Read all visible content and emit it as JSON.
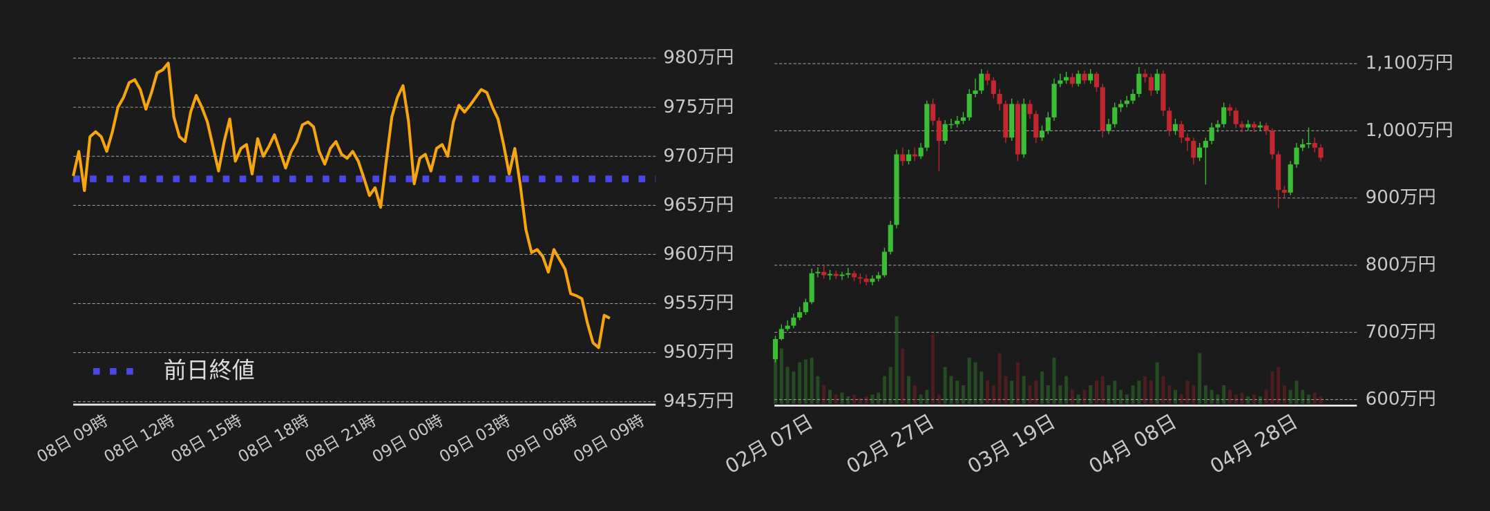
{
  "chart_data": [
    {
      "type": "line",
      "categories": [
        null,
        null,
        null,
        null,
        null,
        null,
        "08日 09時",
        null,
        null,
        null,
        null,
        null,
        null,
        null,
        null,
        null,
        null,
        null,
        "08日 12時",
        null,
        null,
        null,
        null,
        null,
        null,
        null,
        null,
        null,
        null,
        null,
        "08日 15時",
        null,
        null,
        null,
        null,
        null,
        null,
        null,
        null,
        null,
        null,
        null,
        "08日 18時",
        null,
        null,
        null,
        null,
        null,
        null,
        null,
        null,
        null,
        null,
        null,
        "08日 21時",
        null,
        null,
        null,
        null,
        null,
        null,
        null,
        null,
        null,
        null,
        null,
        "09日 00時",
        null,
        null,
        null,
        null,
        null,
        null,
        null,
        null,
        null,
        null,
        null,
        "09日 03時",
        null,
        null,
        null,
        null,
        null,
        null,
        null,
        null,
        null,
        null,
        null,
        "09日 06時",
        null,
        null,
        null,
        null,
        null,
        null,
        null,
        null,
        null,
        null,
        null,
        "09日 09時"
      ],
      "series": [
        {
          "color": "#f5a50d",
          "values": [
            968.0,
            970.5,
            966.5,
            972.0,
            972.5,
            972.0,
            970.5,
            972.5,
            975.0,
            976.0,
            977.5,
            977.8,
            976.8,
            974.8,
            976.5,
            978.5,
            978.8,
            979.5,
            974.0,
            972.0,
            971.5,
            974.5,
            976.2,
            975.0,
            973.5,
            971.0,
            968.5,
            971.5,
            973.8,
            969.5,
            970.8,
            971.2,
            968.2,
            971.8,
            970.0,
            971.0,
            972.2,
            970.5,
            968.8,
            970.5,
            971.5,
            973.2,
            973.5,
            973.0,
            970.5,
            969.2,
            970.8,
            971.5,
            970.2,
            969.8,
            970.5,
            969.5,
            967.8,
            966.0,
            966.8,
            964.8,
            969.5,
            974.0,
            976.0,
            977.2,
            973.5,
            967.2,
            969.8,
            970.2,
            968.5,
            970.8,
            971.2,
            970.0,
            973.5,
            975.2,
            974.5,
            975.2,
            976.0,
            976.8,
            976.5,
            975.0,
            973.8,
            971.2,
            968.2,
            970.8,
            967.0,
            962.5,
            960.2,
            960.5,
            959.8,
            958.2,
            960.5,
            959.5,
            958.5,
            956.0,
            955.8,
            955.5,
            953.0,
            951.0,
            950.5,
            953.8,
            953.5,
            null,
            null,
            null,
            null,
            null,
            null
          ]
        }
      ],
      "reference": {
        "name": "前日終値",
        "value": 967.7,
        "color": "#4b46e6"
      },
      "ylim": [
        944.7,
        980.6
      ],
      "yticks": [
        {
          "value": 945,
          "label": "945万円"
        },
        {
          "value": 950,
          "label": "950万円"
        },
        {
          "value": 955,
          "label": "955万円"
        },
        {
          "value": 960,
          "label": "960万円"
        },
        {
          "value": 965,
          "label": "965万円"
        },
        {
          "value": 970,
          "label": "970万円"
        },
        {
          "value": 975,
          "label": "975万円"
        },
        {
          "value": 980,
          "label": "980万円"
        }
      ],
      "grid": true,
      "legend": "lower left"
    },
    {
      "type": "candlestick",
      "categories": [
        null,
        null,
        null,
        null,
        null,
        null,
        "02月 07日",
        null,
        null,
        null,
        null,
        null,
        null,
        null,
        null,
        null,
        null,
        null,
        null,
        null,
        null,
        null,
        null,
        null,
        null,
        null,
        "02月 27日",
        null,
        null,
        null,
        null,
        null,
        null,
        null,
        null,
        null,
        null,
        null,
        null,
        null,
        null,
        null,
        null,
        null,
        null,
        null,
        "03月 19日",
        null,
        null,
        null,
        null,
        null,
        null,
        null,
        null,
        null,
        null,
        null,
        null,
        null,
        null,
        null,
        null,
        null,
        null,
        null,
        "04月 08日",
        null,
        null,
        null,
        null,
        null,
        null,
        null,
        null,
        null,
        null,
        null,
        null,
        null,
        null,
        null,
        null,
        null,
        null,
        null,
        "04月 28日",
        null,
        null,
        null,
        null
      ],
      "open": [
        660,
        690,
        705,
        710,
        722,
        730,
        745,
        788,
        790,
        785,
        787,
        784,
        786,
        788,
        782,
        780,
        775,
        780,
        785,
        820,
        860,
        965,
        955,
        965,
        962,
        975,
        1040,
        1015,
        985,
        1010,
        1010,
        1015,
        1020,
        1055,
        1060,
        1085,
        1075,
        1055,
        1040,
        990,
        1040,
        965,
        1040,
        1025,
        990,
        1000,
        1020,
        1070,
        1075,
        1080,
        1070,
        1085,
        1075,
        1085,
        1065,
        1000,
        1010,
        1035,
        1040,
        1045,
        1055,
        1085,
        1080,
        1060,
        1085,
        1030,
        1000,
        1010,
        990,
        985,
        960,
        975,
        985,
        1005,
        1010,
        1035,
        1030,
        1010,
        1005,
        1010,
        1005,
        1008,
        1000,
        965,
        912,
        908,
        950,
        975,
        980,
        982,
        975
      ],
      "high": [
        695,
        712,
        718,
        728,
        738,
        750,
        795,
        797,
        800,
        793,
        792,
        790,
        796,
        792,
        788,
        786,
        785,
        790,
        826,
        866,
        972,
        975,
        972,
        975,
        982,
        1045,
        1048,
        1020,
        1016,
        1018,
        1022,
        1028,
        1062,
        1078,
        1092,
        1090,
        1080,
        1062,
        1045,
        1048,
        1045,
        1048,
        1046,
        1030,
        1008,
        1028,
        1078,
        1085,
        1088,
        1086,
        1090,
        1090,
        1092,
        1088,
        1070,
        1018,
        1042,
        1046,
        1052,
        1062,
        1095,
        1092,
        1085,
        1092,
        1090,
        1035,
        1018,
        1015,
        996,
        990,
        982,
        990,
        1012,
        1016,
        1042,
        1040,
        1034,
        1015,
        1016,
        1014,
        1014,
        1012,
        1004,
        970,
        918,
        955,
        982,
        988,
        1005,
        990,
        980
      ],
      "low": [
        655,
        688,
        702,
        706,
        718,
        726,
        742,
        782,
        780,
        778,
        779,
        778,
        781,
        776,
        772,
        770,
        770,
        776,
        782,
        816,
        855,
        948,
        950,
        955,
        958,
        970,
        1008,
        940,
        980,
        1003,
        1005,
        1010,
        1015,
        1050,
        1055,
        1068,
        1048,
        1030,
        982,
        985,
        955,
        960,
        1018,
        982,
        985,
        995,
        1015,
        1065,
        1070,
        1065,
        1066,
        1070,
        1070,
        1058,
        990,
        995,
        1005,
        1028,
        1035,
        1040,
        1050,
        1072,
        1052,
        1055,
        1022,
        992,
        994,
        982,
        970,
        950,
        955,
        920,
        980,
        998,
        1005,
        1022,
        1004,
        998,
        1000,
        998,
        1000,
        994,
        958,
        885,
        900,
        904,
        945,
        970,
        974,
        968,
        955
      ],
      "close": [
        690,
        705,
        710,
        722,
        730,
        745,
        788,
        790,
        785,
        787,
        784,
        786,
        788,
        782,
        780,
        775,
        780,
        785,
        820,
        860,
        965,
        955,
        965,
        962,
        975,
        1040,
        1015,
        985,
        1010,
        1010,
        1015,
        1020,
        1055,
        1060,
        1085,
        1075,
        1055,
        1040,
        990,
        1040,
        965,
        1040,
        1025,
        990,
        1000,
        1020,
        1070,
        1075,
        1080,
        1070,
        1085,
        1075,
        1085,
        1065,
        1000,
        1010,
        1035,
        1040,
        1045,
        1055,
        1085,
        1080,
        1060,
        1085,
        1030,
        1000,
        1010,
        990,
        985,
        960,
        975,
        985,
        1005,
        1010,
        1035,
        1030,
        1010,
        1005,
        1010,
        1005,
        1008,
        1000,
        965,
        912,
        908,
        950,
        975,
        980,
        982,
        975,
        960
      ],
      "volume": [
        55,
        60,
        40,
        35,
        45,
        48,
        50,
        30,
        20,
        15,
        10,
        12,
        8,
        10,
        6,
        8,
        10,
        12,
        30,
        40,
        95,
        60,
        30,
        20,
        10,
        15,
        75,
        10,
        40,
        30,
        25,
        20,
        50,
        45,
        35,
        25,
        20,
        55,
        30,
        25,
        45,
        30,
        20,
        25,
        35,
        20,
        50,
        20,
        30,
        15,
        10,
        15,
        20,
        25,
        30,
        20,
        25,
        15,
        10,
        20,
        25,
        30,
        25,
        45,
        30,
        20,
        15,
        10,
        25,
        20,
        55,
        20,
        15,
        10,
        20,
        15,
        10,
        12,
        8,
        10,
        8,
        15,
        35,
        40,
        20,
        15,
        25,
        15,
        10,
        12,
        8
      ],
      "up_color": "#3cbd36",
      "down_color": "#c2262e",
      "ylim": [
        591,
        1117
      ],
      "yticks": [
        {
          "value": 600,
          "label": "600万円"
        },
        {
          "value": 700,
          "label": "700万円"
        },
        {
          "value": 800,
          "label": "800万円"
        },
        {
          "value": 900,
          "label": "900万円"
        },
        {
          "value": 1000,
          "label": "1,000万円"
        },
        {
          "value": 1100,
          "label": "1,100万円"
        }
      ],
      "grid": true
    }
  ]
}
